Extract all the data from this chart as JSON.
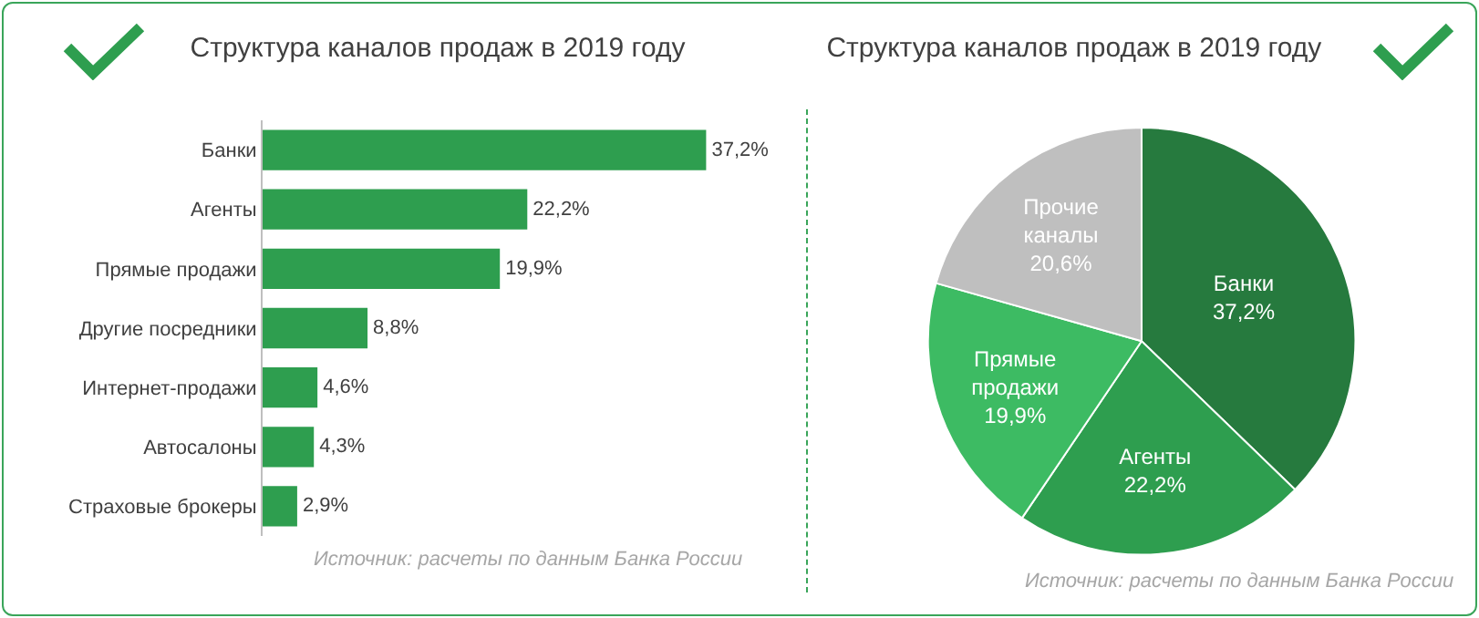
{
  "chart_data": [
    {
      "type": "bar",
      "orientation": "horizontal",
      "title": "Структура каналов продаж в 2019 году",
      "categories": [
        "Банки",
        "Агенты",
        "Прямые продажи",
        "Другие посредники",
        "Интернет-продажи",
        "Автосалоны",
        "Страховые брокеры"
      ],
      "values": [
        37.2,
        22.2,
        19.9,
        8.8,
        4.6,
        4.3,
        2.9
      ],
      "value_labels": [
        "37,2%",
        "22,2%",
        "19,9%",
        "8,8%",
        "4,6%",
        "4,3%",
        "2,9%"
      ],
      "color": "#2e9e4f",
      "tick_labels": "y",
      "grid": false,
      "annotations": [
        "Источник: расчеты по данным Банка России"
      ]
    },
    {
      "type": "pie",
      "title": "Структура каналов продаж в 2019 году",
      "categories": [
        "Банки",
        "Агенты",
        "Прямые продажи",
        "Прочие каналы"
      ],
      "values": [
        37.2,
        22.2,
        19.9,
        20.6
      ],
      "value_labels": [
        "37,2%",
        "22,2%",
        "19,9%",
        "20,6%"
      ],
      "colors": [
        "#267a3e",
        "#2e9e4f",
        "#3dbb63",
        "#bfbfbf"
      ],
      "annotations": [
        "Источник: расчеты по данным Банка России"
      ]
    }
  ]
}
